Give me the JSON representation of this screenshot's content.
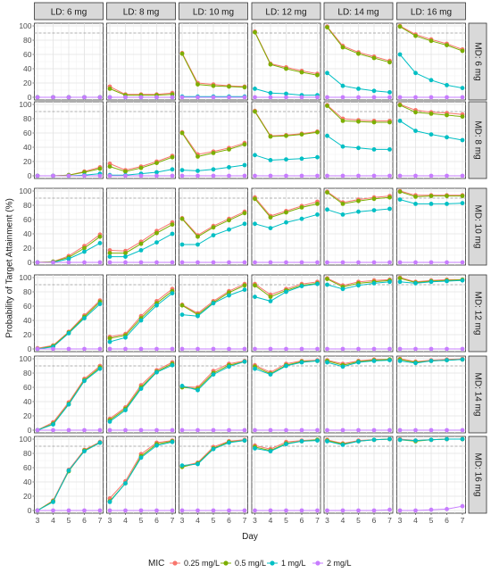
{
  "chart_data": {
    "type": "line",
    "facet_columns": [
      "LD: 6 mg",
      "LD: 8 mg",
      "LD: 10 mg",
      "LD: 12 mg",
      "LD: 14 mg",
      "LD: 16 mg"
    ],
    "facet_rows": [
      "MD: 6 mg",
      "MD: 8 mg",
      "MD: 10 mg",
      "MD: 12 mg",
      "MD: 14 mg",
      "MD: 16 mg"
    ],
    "x": [
      3,
      4,
      5,
      6,
      7
    ],
    "xlabel": "Day",
    "ylabel": "Probability of Target Attainment (%)",
    "ylim": [
      0,
      100
    ],
    "yticks": [
      0,
      20,
      40,
      60,
      80,
      100
    ],
    "reference_line": 90,
    "grid": true,
    "legend": {
      "title": "MIC",
      "position": "bottom",
      "labels": [
        "0.25 mg/L",
        "0.5 mg/L",
        "1 mg/L",
        "2 mg/L"
      ]
    },
    "colors": [
      "#F8766D",
      "#7CAE00",
      "#00BFC4",
      "#C77CFF"
    ],
    "panels": [
      [
        [
          [
            0,
            0,
            0,
            0,
            0
          ],
          [
            0,
            0,
            0,
            0,
            0
          ],
          [
            0,
            0,
            0,
            0,
            0
          ],
          [
            0,
            0,
            0,
            0,
            0
          ]
        ],
        [
          [
            15,
            4,
            4,
            4,
            6
          ],
          [
            12,
            3,
            3,
            3,
            4
          ],
          [
            0,
            0,
            0,
            0,
            0
          ],
          [
            0,
            0,
            0,
            0,
            0
          ]
        ],
        [
          [
            62,
            20,
            18,
            16,
            15
          ],
          [
            61,
            18,
            16,
            15,
            14
          ],
          [
            1,
            1,
            1,
            1,
            1
          ],
          [
            0,
            0,
            0,
            0,
            0
          ]
        ],
        [
          [
            92,
            47,
            42,
            37,
            33
          ],
          [
            91,
            46,
            40,
            35,
            31
          ],
          [
            12,
            6,
            5,
            3,
            3
          ],
          [
            0,
            0,
            0,
            0,
            0
          ]
        ],
        [
          [
            99,
            72,
            63,
            57,
            51
          ],
          [
            98,
            70,
            61,
            55,
            49
          ],
          [
            34,
            16,
            12,
            9,
            7
          ],
          [
            0,
            0,
            0,
            0,
            0
          ]
        ],
        [
          [
            100,
            88,
            81,
            75,
            67
          ],
          [
            99,
            86,
            79,
            73,
            65
          ],
          [
            60,
            34,
            24,
            17,
            13
          ],
          [
            0,
            0,
            0,
            0,
            0
          ]
        ]
      ],
      [
        [
          [
            0,
            0,
            1,
            6,
            12
          ],
          [
            0,
            0,
            1,
            5,
            10
          ],
          [
            0,
            0,
            0,
            1,
            3
          ],
          [
            0,
            0,
            0,
            0,
            0
          ]
        ],
        [
          [
            17,
            8,
            13,
            20,
            28
          ],
          [
            13,
            6,
            11,
            18,
            26
          ],
          [
            1,
            1,
            3,
            5,
            9
          ],
          [
            0,
            0,
            0,
            0,
            0
          ]
        ],
        [
          [
            61,
            30,
            34,
            39,
            46
          ],
          [
            60,
            27,
            32,
            37,
            44
          ],
          [
            8,
            7,
            9,
            12,
            15
          ],
          [
            0,
            0,
            0,
            0,
            0
          ]
        ],
        [
          [
            91,
            56,
            57,
            59,
            62
          ],
          [
            90,
            55,
            56,
            58,
            61
          ],
          [
            29,
            22,
            23,
            24,
            26
          ],
          [
            0,
            0,
            0,
            0,
            0
          ]
        ],
        [
          [
            99,
            80,
            78,
            77,
            77
          ],
          [
            98,
            77,
            76,
            75,
            75
          ],
          [
            56,
            41,
            39,
            37,
            37
          ],
          [
            0,
            0,
            0,
            0,
            0
          ]
        ],
        [
          [
            100,
            92,
            89,
            88,
            86
          ],
          [
            99,
            89,
            87,
            85,
            83
          ],
          [
            77,
            63,
            58,
            54,
            50
          ],
          [
            0,
            0,
            0,
            0,
            0
          ]
        ]
      ],
      [
        [
          [
            0,
            1,
            9,
            23,
            39
          ],
          [
            0,
            1,
            7,
            20,
            36
          ],
          [
            0,
            0,
            5,
            15,
            27
          ],
          [
            0,
            0,
            0,
            0,
            0
          ]
        ],
        [
          [
            17,
            16,
            29,
            44,
            56
          ],
          [
            13,
            13,
            26,
            41,
            53
          ],
          [
            8,
            8,
            17,
            28,
            40
          ],
          [
            0,
            0,
            0,
            0,
            0
          ]
        ],
        [
          [
            62,
            38,
            51,
            61,
            71
          ],
          [
            61,
            36,
            49,
            59,
            69
          ],
          [
            25,
            25,
            38,
            46,
            54
          ],
          [
            0,
            0,
            0,
            0,
            0
          ]
        ],
        [
          [
            91,
            65,
            72,
            79,
            85
          ],
          [
            89,
            63,
            70,
            77,
            82
          ],
          [
            54,
            48,
            56,
            61,
            67
          ],
          [
            0,
            0,
            0,
            0,
            0
          ]
        ],
        [
          [
            99,
            84,
            88,
            91,
            93
          ],
          [
            98,
            82,
            86,
            89,
            91
          ],
          [
            74,
            67,
            71,
            73,
            75
          ],
          [
            0,
            0,
            0,
            0,
            0
          ]
        ],
        [
          [
            100,
            94,
            94,
            94,
            94
          ],
          [
            99,
            92,
            93,
            93,
            93
          ],
          [
            88,
            82,
            82,
            82,
            83
          ],
          [
            0,
            0,
            0,
            0,
            0
          ]
        ]
      ],
      [
        [
          [
            1,
            5,
            24,
            47,
            68
          ],
          [
            0,
            4,
            23,
            45,
            66
          ],
          [
            0,
            3,
            22,
            43,
            63
          ],
          [
            0,
            0,
            0,
            0,
            0
          ]
        ],
        [
          [
            17,
            21,
            46,
            67,
            84
          ],
          [
            15,
            19,
            43,
            64,
            81
          ],
          [
            10,
            16,
            40,
            61,
            78
          ],
          [
            0,
            0,
            0,
            0,
            0
          ]
        ],
        [
          [
            62,
            50,
            67,
            81,
            91
          ],
          [
            61,
            48,
            65,
            79,
            89
          ],
          [
            48,
            46,
            64,
            75,
            83
          ],
          [
            0,
            0,
            0,
            0,
            0
          ]
        ],
        [
          [
            91,
            76,
            84,
            91,
            94
          ],
          [
            89,
            73,
            82,
            89,
            92
          ],
          [
            73,
            67,
            80,
            88,
            91
          ],
          [
            0,
            0,
            0,
            0,
            0
          ]
        ],
        [
          [
            99,
            89,
            94,
            96,
            97
          ],
          [
            98,
            87,
            92,
            94,
            96
          ],
          [
            90,
            84,
            89,
            92,
            94
          ],
          [
            0,
            0,
            0,
            0,
            0
          ]
        ],
        [
          [
            100,
            94,
            96,
            97,
            97
          ],
          [
            99,
            93,
            95,
            96,
            97
          ],
          [
            94,
            92,
            94,
            95,
            96
          ],
          [
            0,
            0,
            0,
            0,
            0
          ]
        ]
      ],
      [
        [
          [
            0,
            11,
            39,
            72,
            90
          ],
          [
            0,
            9,
            37,
            70,
            88
          ],
          [
            0,
            8,
            36,
            69,
            86
          ],
          [
            0,
            0,
            0,
            0,
            0
          ]
        ],
        [
          [
            16,
            32,
            63,
            84,
            95
          ],
          [
            14,
            30,
            60,
            82,
            93
          ],
          [
            12,
            28,
            58,
            81,
            91
          ],
          [
            0,
            0,
            0,
            0,
            0
          ]
        ],
        [
          [
            61,
            60,
            83,
            93,
            97
          ],
          [
            60,
            58,
            80,
            91,
            96
          ],
          [
            62,
            56,
            78,
            89,
            96
          ],
          [
            0,
            0,
            0,
            0,
            0
          ]
        ],
        [
          [
            91,
            81,
            93,
            97,
            98
          ],
          [
            89,
            79,
            91,
            96,
            97
          ],
          [
            86,
            78,
            90,
            95,
            97
          ],
          [
            0,
            0,
            0,
            0,
            0
          ]
        ],
        [
          [
            98,
            93,
            97,
            99,
            99
          ],
          [
            97,
            91,
            96,
            98,
            99
          ],
          [
            95,
            89,
            95,
            97,
            98
          ],
          [
            0,
            0,
            0,
            0,
            0
          ]
        ],
        [
          [
            100,
            96,
            98,
            99,
            100
          ],
          [
            99,
            95,
            97,
            98,
            99
          ],
          [
            97,
            94,
            97,
            98,
            99
          ],
          [
            0,
            0,
            0,
            0,
            0
          ]
        ]
      ],
      [
        [
          [
            0,
            14,
            57,
            85,
            96
          ],
          [
            0,
            13,
            55,
            84,
            95
          ],
          [
            0,
            12,
            56,
            83,
            95
          ],
          [
            0,
            0,
            0,
            0,
            0
          ]
        ],
        [
          [
            17,
            41,
            79,
            95,
            98
          ],
          [
            13,
            38,
            76,
            93,
            97
          ],
          [
            12,
            38,
            74,
            91,
            96
          ],
          [
            0,
            0,
            0,
            0,
            0
          ]
        ],
        [
          [
            62,
            67,
            89,
            97,
            99
          ],
          [
            61,
            66,
            87,
            96,
            98
          ],
          [
            63,
            65,
            86,
            95,
            98
          ],
          [
            0,
            0,
            0,
            0,
            0
          ]
        ],
        [
          [
            91,
            86,
            96,
            98,
            99
          ],
          [
            89,
            84,
            94,
            97,
            99
          ],
          [
            87,
            83,
            93,
            97,
            98
          ],
          [
            0,
            0,
            0,
            0,
            0
          ]
        ],
        [
          [
            99,
            94,
            98,
            99,
            100
          ],
          [
            98,
            93,
            97,
            99,
            100
          ],
          [
            97,
            92,
            97,
            99,
            100
          ],
          [
            0,
            0,
            0,
            0,
            1
          ]
        ],
        [
          [
            100,
            98,
            99,
            100,
            100
          ],
          [
            99,
            97,
            99,
            100,
            100
          ],
          [
            99,
            98,
            99,
            100,
            100
          ],
          [
            0,
            0,
            1,
            2,
            6
          ]
        ]
      ]
    ]
  }
}
